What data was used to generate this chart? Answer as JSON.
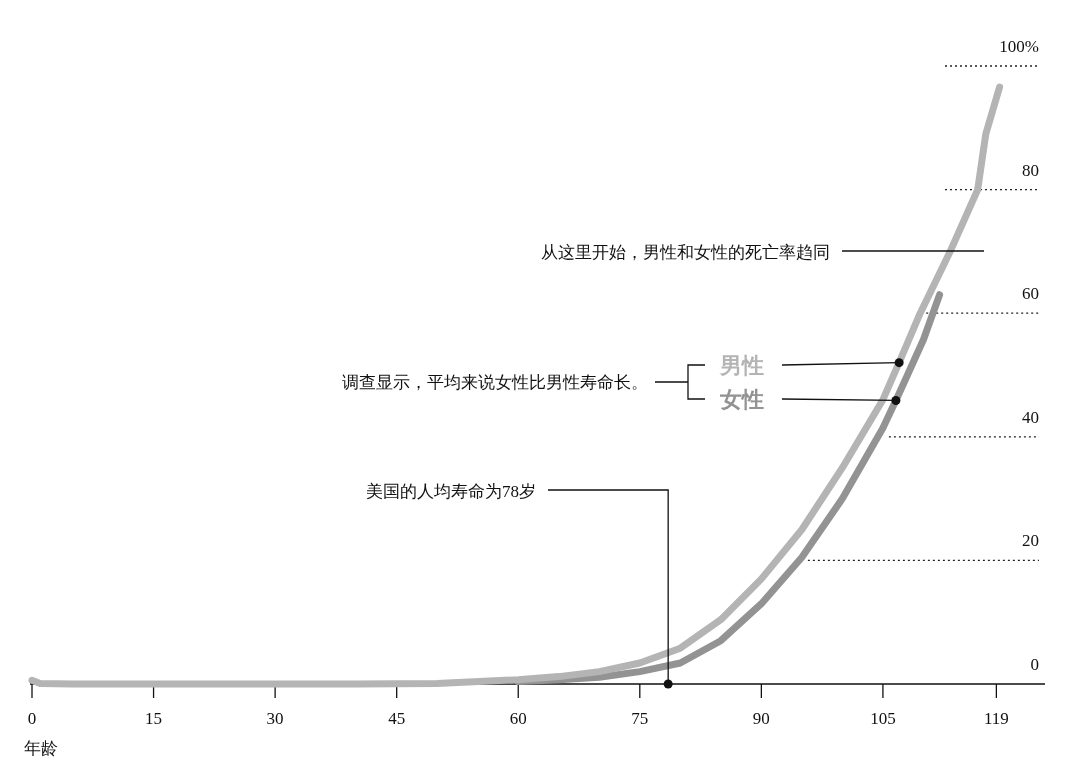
{
  "chart_data": {
    "type": "line",
    "xlabel": "年龄",
    "series": [
      {
        "name": "男性",
        "color": "#b4b4b4",
        "x": [
          0,
          1,
          5,
          20,
          40,
          50,
          60,
          65,
          70,
          75,
          80,
          85,
          90,
          95,
          100,
          105,
          107,
          109.6,
          113.3,
          116.7,
          117.7,
          119.4
        ],
        "values": [
          0.6,
          0.1,
          0,
          0,
          0,
          0.1,
          0.7,
          1.2,
          2,
          3.4,
          5.8,
          10.4,
          17,
          25,
          35,
          46,
          52,
          60,
          70,
          80,
          89,
          96.6
        ]
      },
      {
        "name": "女性",
        "color": "#939393",
        "x": [
          60,
          65,
          70,
          75,
          80,
          85,
          90,
          95,
          100,
          105,
          107,
          110,
          112
        ],
        "values": [
          0.4,
          0.7,
          1.1,
          2,
          3.4,
          7,
          13,
          20.5,
          30,
          41.4,
          47,
          55.7,
          63
        ]
      }
    ],
    "xlim": [
      0,
      125
    ],
    "ylim": [
      0,
      100
    ],
    "xticks": [
      0,
      15,
      30,
      45,
      60,
      75,
      90,
      105,
      119
    ],
    "yticks": [
      0,
      20,
      40,
      60,
      80,
      {
        "value": 100,
        "label": "100%"
      }
    ],
    "ref_lines": [
      {
        "axis": "y",
        "value": 20,
        "line_style": "dotted"
      },
      {
        "axis": "y",
        "value": 40,
        "line_style": "dotted"
      },
      {
        "axis": "y",
        "value": 60,
        "line_style": "dotted"
      },
      {
        "axis": "y",
        "value": 80,
        "line_style": "dotted"
      },
      {
        "axis": "y",
        "value": 100,
        "line_style": "dotted"
      }
    ],
    "line_style": "solid",
    "marker": "none",
    "annotations": [
      {
        "text": "美国的人均寿命为78岁",
        "x": 78.5,
        "y": 0
      },
      "调查显示，平均来说女性比男性寿命长。",
      "从这里开始，男性和女性的死亡率趋同"
    ]
  }
}
